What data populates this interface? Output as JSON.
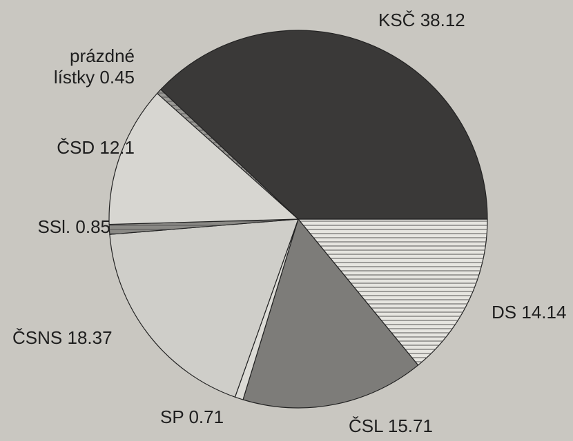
{
  "chart_data": {
    "type": "pie",
    "categories": [
      "DS",
      "ČSL",
      "SP",
      "ČSNS",
      "SSl.",
      "ČSD",
      "prázdné lístky",
      "KSČ"
    ],
    "values": [
      14.14,
      15.71,
      0.71,
      18.37,
      0.85,
      12.1,
      0.45,
      38.12
    ],
    "colors": [
      "#e6e5e0",
      "#7d7c79",
      "#dcdbd6",
      "#cfcec9",
      "#8a8985",
      "#d7d6d1",
      "#9a9995",
      "#3a3938"
    ]
  }
}
